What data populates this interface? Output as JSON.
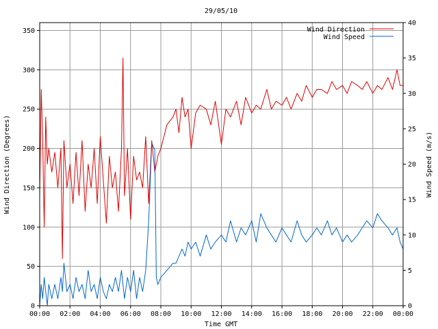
{
  "chart_data": {
    "type": "line",
    "title": "29/05/10",
    "xlabel": "Time GMT",
    "ylabel_left": "Wind Direction (Degrees)",
    "ylabel_right": "Wind Speed (m/s)",
    "x_ticks": [
      "00:00",
      "02:00",
      "04:00",
      "06:00",
      "08:00",
      "10:00",
      "12:00",
      "14:00",
      "16:00",
      "18:00",
      "20:00",
      "22:00",
      "00:00"
    ],
    "x_range_hours": [
      0,
      24
    ],
    "y_left_range": [
      0,
      360
    ],
    "y_left_ticks": [
      0,
      50,
      100,
      150,
      200,
      250,
      300,
      350
    ],
    "y_right_range": [
      0,
      40
    ],
    "y_right_ticks": [
      0,
      5,
      10,
      15,
      20,
      25,
      30,
      35,
      40
    ],
    "grid": true,
    "legend_position": "top-right",
    "series": [
      {
        "name": "Wind Direction",
        "axis": "left",
        "color": "#dd0000",
        "x_hours": [
          0,
          0.1,
          0.2,
          0.3,
          0.4,
          0.5,
          0.6,
          0.8,
          1.0,
          1.2,
          1.4,
          1.5,
          1.6,
          1.8,
          2.0,
          2.2,
          2.4,
          2.6,
          2.8,
          3.0,
          3.2,
          3.4,
          3.6,
          3.8,
          4.0,
          4.2,
          4.4,
          4.6,
          4.8,
          5.0,
          5.2,
          5.4,
          5.5,
          5.6,
          5.8,
          6.0,
          6.2,
          6.4,
          6.6,
          6.8,
          7.0,
          7.2,
          7.4,
          7.6,
          7.8,
          8.0,
          8.4,
          8.8,
          9.0,
          9.2,
          9.4,
          9.6,
          9.8,
          10.0,
          10.3,
          10.6,
          11.0,
          11.3,
          11.6,
          12.0,
          12.3,
          12.6,
          13.0,
          13.3,
          13.6,
          14.0,
          14.3,
          14.6,
          15.0,
          15.3,
          15.6,
          16.0,
          16.3,
          16.6,
          17.0,
          17.3,
          17.6,
          18.0,
          18.3,
          18.6,
          19.0,
          19.3,
          19.6,
          20.0,
          20.3,
          20.6,
          21.0,
          21.3,
          21.6,
          22.0,
          22.3,
          22.6,
          23.0,
          23.3,
          23.6,
          23.8,
          24.0
        ],
        "y": [
          140,
          275,
          210,
          100,
          240,
          180,
          200,
          170,
          195,
          150,
          200,
          60,
          210,
          150,
          180,
          130,
          195,
          140,
          210,
          120,
          180,
          150,
          200,
          130,
          215,
          160,
          105,
          190,
          150,
          170,
          120,
          200,
          315,
          140,
          200,
          110,
          190,
          160,
          170,
          150,
          215,
          130,
          210,
          170,
          190,
          200,
          230,
          240,
          250,
          220,
          265,
          240,
          250,
          200,
          245,
          255,
          250,
          230,
          260,
          205,
          250,
          240,
          260,
          230,
          265,
          245,
          255,
          250,
          275,
          250,
          260,
          255,
          265,
          250,
          270,
          260,
          280,
          265,
          275,
          275,
          270,
          285,
          275,
          280,
          270,
          285,
          280,
          275,
          285,
          270,
          280,
          275,
          290,
          275,
          300,
          280,
          280
        ]
      },
      {
        "name": "Wind Speed",
        "axis": "right",
        "color": "#0066cc",
        "x_hours": [
          0,
          0.1,
          0.2,
          0.3,
          0.4,
          0.5,
          0.6,
          0.8,
          1.0,
          1.2,
          1.4,
          1.5,
          1.6,
          1.8,
          2.0,
          2.2,
          2.4,
          2.6,
          2.8,
          3.0,
          3.2,
          3.4,
          3.6,
          3.8,
          4.0,
          4.2,
          4.4,
          4.6,
          4.8,
          5.0,
          5.2,
          5.4,
          5.6,
          5.8,
          6.0,
          6.2,
          6.4,
          6.6,
          6.8,
          7.0,
          7.2,
          7.4,
          7.6,
          7.7,
          7.8,
          8.0,
          8.4,
          8.8,
          9.0,
          9.2,
          9.4,
          9.6,
          9.8,
          10.0,
          10.3,
          10.6,
          11.0,
          11.3,
          11.6,
          12.0,
          12.3,
          12.6,
          13.0,
          13.3,
          13.6,
          14.0,
          14.3,
          14.6,
          15.0,
          15.3,
          15.6,
          16.0,
          16.3,
          16.6,
          17.0,
          17.3,
          17.6,
          18.0,
          18.3,
          18.6,
          19.0,
          19.3,
          19.6,
          20.0,
          20.3,
          20.6,
          21.0,
          21.3,
          21.6,
          22.0,
          22.3,
          22.6,
          23.0,
          23.3,
          23.6,
          23.8,
          24.0
        ],
        "y": [
          0,
          3,
          1,
          4,
          2,
          0,
          3,
          1,
          3,
          1,
          4,
          2,
          6,
          2,
          3,
          1,
          4,
          2,
          3,
          1,
          5,
          2,
          3,
          1,
          4,
          2,
          1,
          3,
          2,
          4,
          2,
          5,
          1,
          4,
          2,
          5,
          1,
          4,
          2,
          5,
          12,
          23,
          22,
          4,
          3,
          4,
          5,
          6,
          6,
          7,
          8,
          7,
          9,
          8,
          9,
          7,
          10,
          8,
          9,
          10,
          9,
          12,
          9,
          11,
          10,
          12,
          9,
          13,
          11,
          10,
          9,
          11,
          10,
          9,
          12,
          10,
          9,
          10,
          11,
          10,
          12,
          10,
          11,
          9,
          10,
          9,
          10,
          11,
          12,
          11,
          13,
          12,
          11,
          10,
          11,
          9,
          8
        ]
      }
    ]
  }
}
